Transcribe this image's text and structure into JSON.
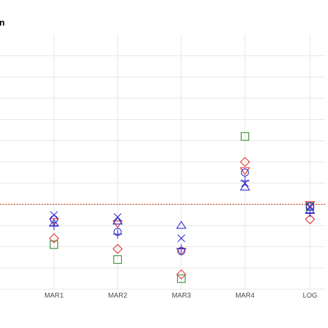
{
  "chart_data": {
    "type": "scatter",
    "title_fragment": "n",
    "categories": [
      "MAR1",
      "MAR2",
      "MAR3",
      "MAR4",
      "LOG"
    ],
    "y_tick_count": 12,
    "ylim": [
      0,
      12
    ],
    "grid": true,
    "reference_line": {
      "y": 4.0,
      "color": "#cc3300",
      "style": "dotted"
    },
    "series": [
      {
        "marker": "square",
        "color": "#2e8b2e",
        "values": [
          2.1,
          1.4,
          0.5,
          7.2,
          3.9
        ]
      },
      {
        "marker": "diamond",
        "color": "#e0302a",
        "values": [
          2.4,
          1.9,
          0.7,
          6.0,
          3.3
        ]
      },
      {
        "marker": "triangle-down",
        "color": "#e0302a",
        "values": [
          3.2,
          3.1,
          1.8,
          5.6,
          4.0
        ]
      },
      {
        "marker": "circle",
        "color": "#2b2bd0",
        "values": [
          3.3,
          2.7,
          1.8,
          5.5,
          3.9
        ]
      },
      {
        "marker": "cross-plus",
        "color": "#2b2bd0",
        "values": [
          3.0,
          2.6,
          1.9,
          5.1,
          3.6
        ]
      },
      {
        "marker": "x",
        "color": "#2b2bd0",
        "values": [
          3.5,
          3.4,
          2.4,
          5.0,
          3.9
        ]
      },
      {
        "marker": "triangle-up",
        "color": "#2b2bd0",
        "values": [
          3.1,
          3.2,
          3.0,
          4.8,
          3.7
        ]
      }
    ]
  }
}
